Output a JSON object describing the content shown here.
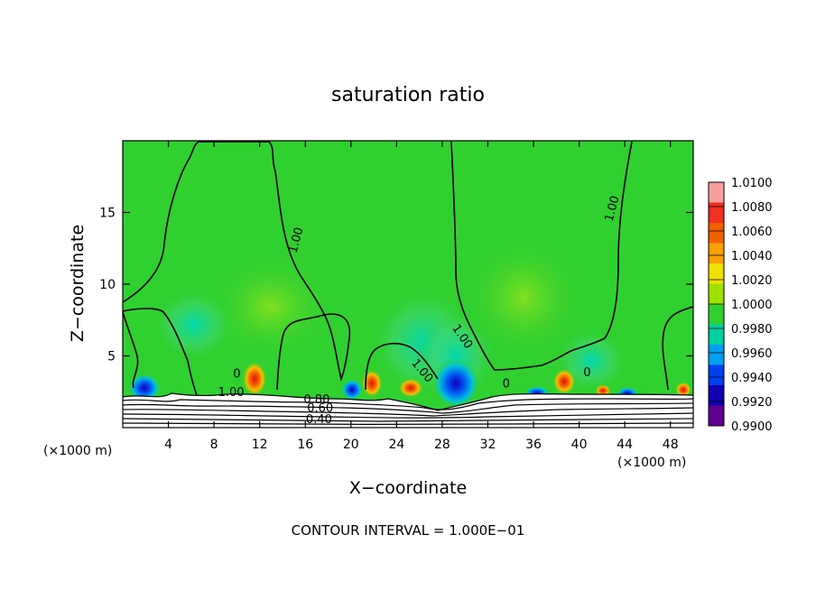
{
  "chart_data": {
    "type": "heatmap",
    "title": "saturation ratio",
    "xlabel": "X−coordinate",
    "ylabel": "Z−coordinate",
    "x_unit_left": "(×1000 m)",
    "x_unit_right": "(×1000 m)",
    "footer": "CONTOUR INTERVAL = 1.000E−01",
    "xlim": [
      0,
      50
    ],
    "ylim": [
      0,
      20
    ],
    "x_ticks": [
      4,
      8,
      12,
      16,
      20,
      24,
      28,
      32,
      36,
      40,
      44,
      48
    ],
    "y_ticks": [
      5,
      10,
      15
    ],
    "colorbar": {
      "labels": [
        "1.0100",
        "1.0080",
        "1.0060",
        "1.0040",
        "1.0020",
        "1.0000",
        "0.9980",
        "0.9960",
        "0.9940",
        "0.9920",
        "0.9900"
      ],
      "colors": [
        "#f7a0a0",
        "#f03020",
        "#f06000",
        "#f8a000",
        "#f0e000",
        "#a0e000",
        "#30d030",
        "#00d0a0",
        "#00a0f0",
        "#0040f0",
        "#1000b0",
        "#600090"
      ]
    },
    "contour_labels": [
      {
        "text": "1.00",
        "x": 15.5,
        "y": 13
      },
      {
        "text": "1.00",
        "x": 43.2,
        "y": 15.2
      },
      {
        "text": "1.00",
        "x": 29.5,
        "y": 6.2
      },
      {
        "text": "1.00",
        "x": 26.0,
        "y": 3.8
      },
      {
        "text": "1.00",
        "x": 9.5,
        "y": 2.2
      },
      {
        "text": "0",
        "x": 10.0,
        "y": 3.5
      },
      {
        "text": "0",
        "x": 40.7,
        "y": 3.6
      },
      {
        "text": "0",
        "x": 33.6,
        "y": 2.8
      },
      {
        "text": "0.80",
        "x": 17.0,
        "y": 1.7
      },
      {
        "text": "0.60",
        "x": 17.3,
        "y": 1.1
      },
      {
        "text": "0.40",
        "x": 17.2,
        "y": 0.3
      }
    ]
  }
}
